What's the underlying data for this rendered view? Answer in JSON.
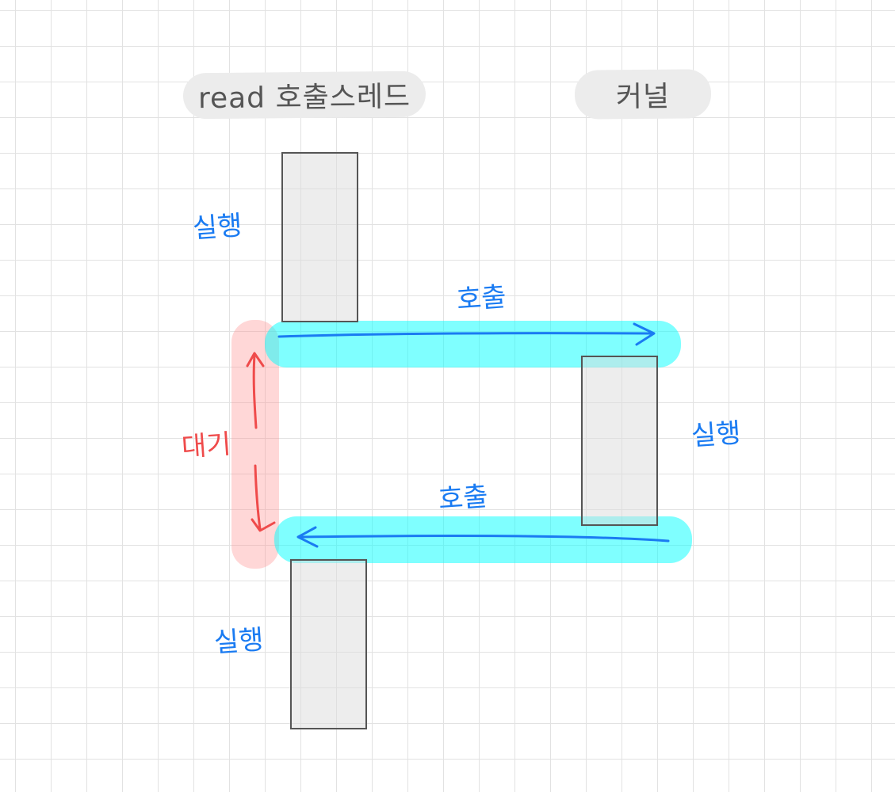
{
  "headers": {
    "thread": "read 호출스레드",
    "kernel": "커널"
  },
  "notes": {
    "run_top": "실행",
    "call_top": "호출",
    "run_kernel": "실행",
    "wait": "대기",
    "call_bottom": "호출",
    "run_bottom": "실행"
  },
  "colors": {
    "blue_ink": "#1a7bf2",
    "red_ink": "#ef4b4b",
    "cyan_highlight": "#00ffff",
    "pink_highlight": "#ff8c8c",
    "block_fill": "#dcdcdc",
    "block_stroke": "#555555"
  }
}
